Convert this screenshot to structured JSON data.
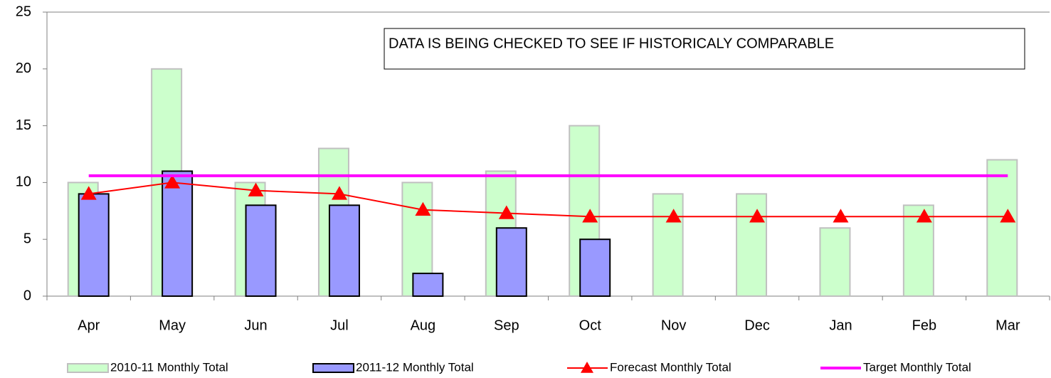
{
  "chart_data": {
    "type": "bar_line",
    "annotation": "DATA IS BEING CHECKED TO SEE IF HISTORICALY COMPARABLE",
    "categories": [
      "Apr",
      "May",
      "Jun",
      "Jul",
      "Aug",
      "Sep",
      "Oct",
      "Nov",
      "Dec",
      "Jan",
      "Feb",
      "Mar"
    ],
    "series": [
      {
        "name": "2010-11 Monthly Total",
        "type": "bar",
        "color": "#ccffcc",
        "values": [
          10,
          20,
          10,
          13,
          10,
          11,
          15,
          9,
          9,
          6,
          8,
          12
        ]
      },
      {
        "name": "2011-12 Monthly Total",
        "type": "bar",
        "color": "#9999ff",
        "values": [
          9,
          11,
          8,
          8,
          2,
          6,
          5,
          null,
          null,
          null,
          null,
          null
        ]
      },
      {
        "name": "Forecast Monthly Total",
        "type": "line",
        "color": "#ff0000",
        "values": [
          9,
          10,
          9.3,
          9,
          7.6,
          7.3,
          7,
          7,
          7,
          7,
          7,
          7
        ]
      },
      {
        "name": "Target Monthly Total",
        "type": "line",
        "color": "#ff00ff",
        "values": [
          10.6,
          10.6,
          10.6,
          10.6,
          10.6,
          10.6,
          10.6,
          10.6,
          10.6,
          10.6,
          10.6,
          10.6
        ]
      }
    ],
    "ylim": [
      0,
      25
    ],
    "yticks": [
      0,
      5,
      10,
      15,
      20,
      25
    ],
    "grid": false,
    "legend": "bottom"
  }
}
